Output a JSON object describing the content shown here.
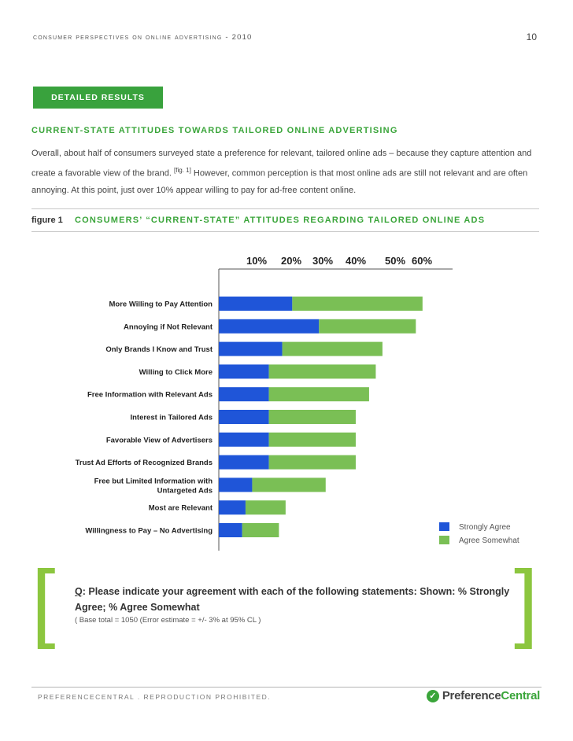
{
  "header": {
    "running_title": "consumer perspectives on online advertising - 2010",
    "page_number": "10"
  },
  "section_tab": "DETAILED RESULTS",
  "section_heading": "CURRENT-STATE ATTITUDES TOWARDS TAILORED ONLINE ADVERTISING",
  "intro": {
    "part1": "Overall, about half of consumers surveyed state a preference for relevant, tailored online ads – because they capture attention and create a favorable view of the brand.",
    "citation": "[fig. 1]",
    "part2": "However, common perception is that most online ads are still not relevant and are often annoying.  At this point, just over 10% appear willing to pay for ad-free content online."
  },
  "figure": {
    "label": "figure 1",
    "title": "CONSUMERS’ “CURRENT-STATE” ATTITUDES REGARDING TAILORED ONLINE ADS"
  },
  "chart_data": {
    "type": "bar",
    "orientation": "horizontal",
    "stacked": true,
    "tick_labels": [
      "10%",
      "20%",
      "30%",
      "40%",
      "50%",
      "60%"
    ],
    "categories": [
      "More Willing to Pay Attention",
      "Annoying if Not Relevant",
      "Only Brands I Know and Trust",
      "Willing to Click More",
      "Free Information with Relevant Ads",
      "Interest in Tailored Ads",
      "Favorable View of Advertisers",
      "Trust Ad Efforts of Recognized Brands",
      "Free but Limited Information with Untargeted Ads",
      "Most are Relevant",
      "Willingness to Pay – No Advertising"
    ],
    "series": [
      {
        "name": "Strongly Agree",
        "color": "#1f55d8",
        "values": [
          22,
          30,
          19,
          15,
          15,
          15,
          15,
          15,
          10,
          8,
          7
        ]
      },
      {
        "name": "Agree Somewhat",
        "color": "#7abf55",
        "values": [
          39,
          29,
          30,
          32,
          30,
          26,
          26,
          26,
          22,
          12,
          11
        ]
      }
    ],
    "xlim": [
      0,
      70
    ]
  },
  "question": {
    "prefix": "Q",
    "text": ": Please indicate your agreement with each of the following statements:  Shown: % Strongly Agree; % Agree Somewhat",
    "base_note": "( Base total = 1050  (Error  estimate = +/- 3% at 95% CL )"
  },
  "footer": {
    "copyright": "PREFERENCECENTRAL . REPRODUCTION PROHIBITED.",
    "logo_mark": "✓",
    "logo_part1": "Preference",
    "logo_part2": "Central"
  }
}
